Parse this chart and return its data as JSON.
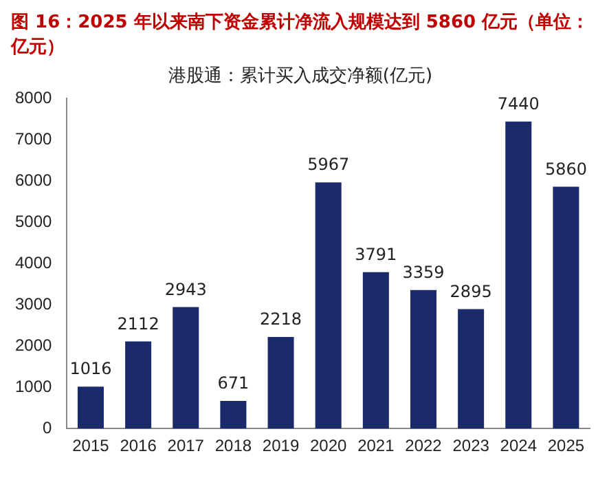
{
  "chart_data": {
    "type": "bar",
    "title": "图 16：2025 年以来南下资金累计净流入规模达到 5860 亿元（单位：亿元）",
    "subtitle": "港股通：累计买入成交净额(亿元)",
    "categories": [
      "2015",
      "2016",
      "2017",
      "2018",
      "2019",
      "2020",
      "2021",
      "2022",
      "2023",
      "2024",
      "2025"
    ],
    "values": [
      1016,
      2112,
      2943,
      671,
      2218,
      5967,
      3791,
      3359,
      2895,
      7440,
      5860
    ],
    "color": "#1b2a6b",
    "ylim": [
      0,
      8000
    ],
    "yticks": [
      0,
      1000,
      2000,
      3000,
      4000,
      5000,
      6000,
      7000,
      8000
    ],
    "grid": false,
    "data_labels": true,
    "legend": false
  }
}
